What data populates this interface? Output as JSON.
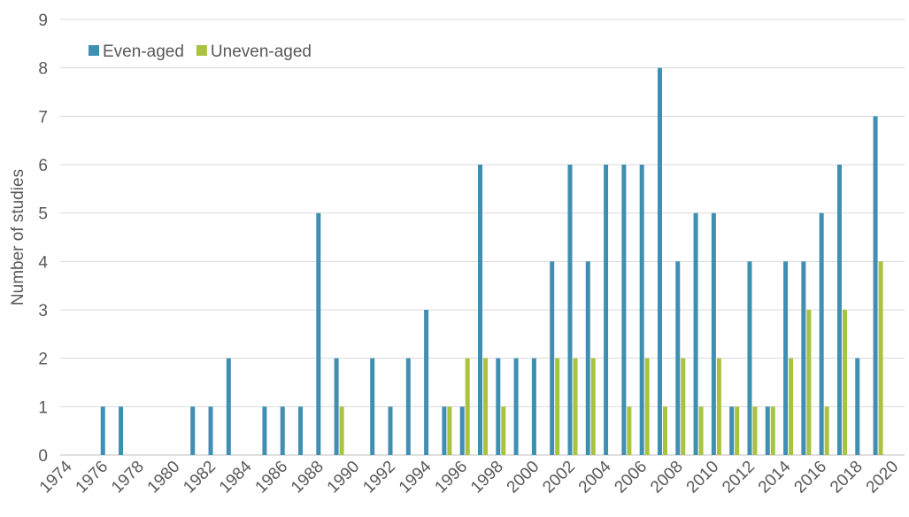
{
  "chart_data": {
    "type": "bar",
    "y_label": "Number of studies",
    "categories": [
      "1974",
      null,
      "1976",
      null,
      "1978",
      null,
      "1980",
      null,
      "1982",
      null,
      "1984",
      null,
      "1986",
      null,
      "1988",
      null,
      "1990",
      null,
      "1992",
      null,
      "1994",
      null,
      "1996",
      null,
      "1998",
      null,
      "2000",
      null,
      "2002",
      null,
      "2004",
      null,
      "2006",
      null,
      "2008",
      null,
      "2010",
      null,
      "2012",
      null,
      "2014",
      null,
      "2016",
      null,
      "2018",
      null,
      "2020"
    ],
    "series": [
      {
        "name": "Even-aged",
        "color": "#3f8fb3",
        "values": [
          0,
          0,
          1,
          1,
          0,
          0,
          0,
          1,
          1,
          2,
          0,
          1,
          1,
          1,
          5,
          2,
          0,
          2,
          1,
          2,
          3,
          1,
          1,
          6,
          2,
          2,
          2,
          4,
          6,
          4,
          6,
          6,
          6,
          8,
          4,
          5,
          5,
          1,
          4,
          1,
          4,
          4,
          5,
          6,
          2,
          7,
          0
        ]
      },
      {
        "name": "Uneven-aged",
        "color": "#a9c23f",
        "values": [
          0,
          0,
          0,
          0,
          0,
          0,
          0,
          0,
          0,
          0,
          0,
          0,
          0,
          0,
          0,
          1,
          0,
          0,
          0,
          0,
          0,
          1,
          2,
          2,
          1,
          0,
          0,
          2,
          2,
          2,
          0,
          1,
          2,
          1,
          2,
          1,
          2,
          1,
          1,
          1,
          2,
          3,
          1,
          3,
          0,
          4,
          0
        ]
      }
    ],
    "ylim": [
      0,
      9
    ],
    "yticks": [
      0,
      1,
      2,
      3,
      4,
      5,
      6,
      7,
      8,
      9
    ],
    "grid": true,
    "legend": "top-left"
  }
}
